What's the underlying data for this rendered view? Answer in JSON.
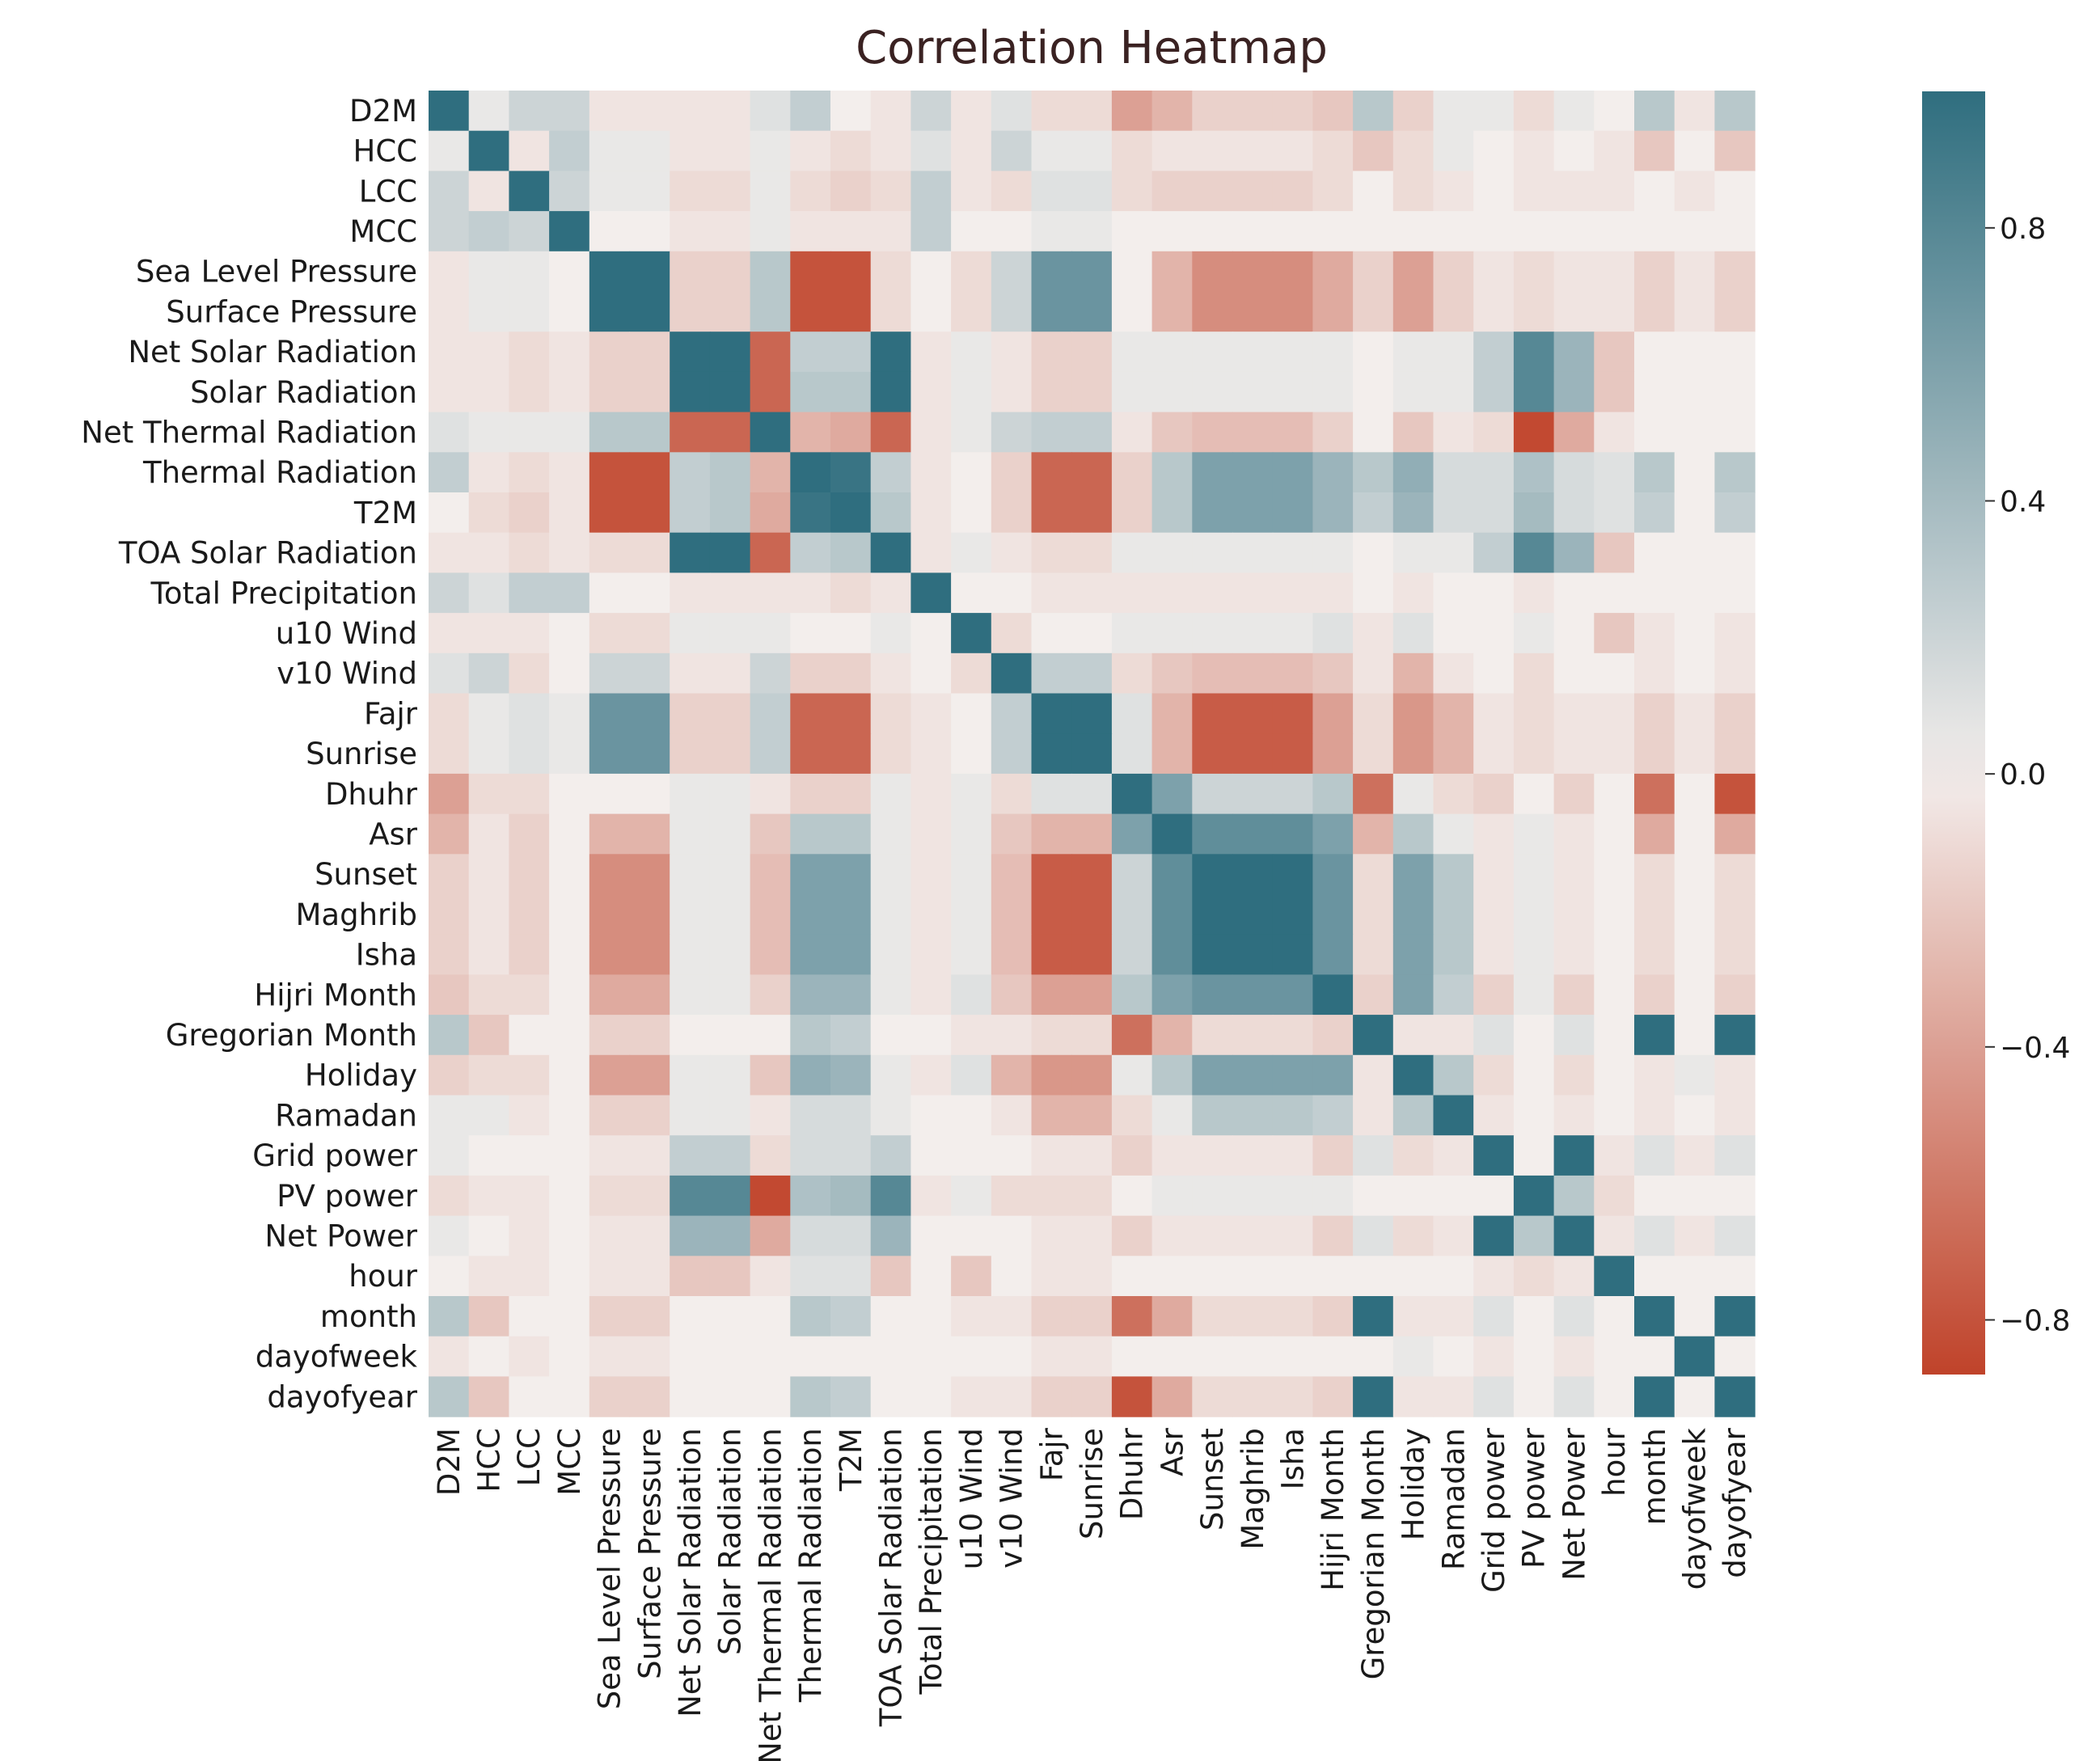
{
  "chart_data": {
    "type": "heatmap",
    "title": "Correlation Heatmap",
    "labels": [
      "D2M",
      "HCC",
      "LCC",
      "MCC",
      "Sea Level Pressure",
      "Surface Pressure",
      "Net Solar Radiation",
      "Solar Radiation",
      "Net Thermal Radiation",
      "Thermal Radiation",
      "T2M",
      "TOA Solar Radiation",
      "Total Precipitation",
      "u10 Wind",
      "v10 Wind",
      "Fajr",
      "Sunrise",
      "Dhuhr",
      "Asr",
      "Sunset",
      "Maghrib",
      "Isha",
      "Hijri Month",
      "Gregorian Month",
      "Holiday",
      "Ramadan",
      "Grid power",
      "PV power",
      "Net Power",
      "hour",
      "month",
      "dayofweek",
      "dayofyear"
    ],
    "colorbar": {
      "min": -0.88,
      "max": 1.0,
      "ticks": [
        0.8,
        0.4,
        0.0,
        -0.4,
        -0.8
      ],
      "tick_labels": [
        "0.8",
        "0.4",
        "0.0",
        "−0.4",
        "−0.8"
      ],
      "low_color": "#c0432a",
      "mid_color": "#f3eeec",
      "high_color": "#2f6e7f"
    },
    "matrix": [
      [
        1,
        0.05,
        0.2,
        0.2,
        -0.05,
        -0.05,
        -0.05,
        -0.05,
        0.1,
        0.25,
        0,
        -0.05,
        0.2,
        -0.05,
        0.1,
        -0.1,
        -0.1,
        -0.4,
        -0.3,
        -0.15,
        -0.15,
        -0.15,
        -0.2,
        0.3,
        -0.15,
        0.05,
        0.05,
        -0.1,
        0.05,
        0,
        0.3,
        -0.05,
        0.3
      ],
      [
        0.05,
        1,
        -0.05,
        0.25,
        0.05,
        0.05,
        -0.05,
        -0.05,
        0.05,
        -0.05,
        -0.1,
        -0.05,
        0.1,
        -0.05,
        0.2,
        0.05,
        0.05,
        -0.1,
        -0.05,
        -0.05,
        -0.05,
        -0.05,
        -0.1,
        -0.2,
        -0.1,
        0.05,
        0,
        -0.05,
        0,
        -0.05,
        -0.2,
        0,
        -0.2
      ],
      [
        0.2,
        -0.05,
        1,
        0.2,
        0.05,
        0.05,
        -0.1,
        -0.1,
        0.05,
        -0.1,
        -0.15,
        -0.1,
        0.25,
        -0.05,
        -0.1,
        0.1,
        0.1,
        -0.1,
        -0.15,
        -0.15,
        -0.15,
        -0.15,
        -0.1,
        0,
        -0.1,
        -0.05,
        0,
        -0.05,
        -0.05,
        -0.05,
        0,
        -0.05,
        0
      ],
      [
        0.2,
        0.25,
        0.2,
        1,
        0,
        0,
        -0.05,
        -0.05,
        0.05,
        -0.05,
        -0.05,
        -0.05,
        0.25,
        0,
        0,
        0.05,
        0.05,
        0,
        0,
        0,
        0,
        0,
        0,
        0,
        0,
        0,
        0,
        0,
        0,
        0,
        0,
        0,
        0
      ],
      [
        -0.05,
        0.05,
        0.05,
        0,
        1,
        1,
        -0.15,
        -0.15,
        0.3,
        -0.8,
        -0.8,
        -0.1,
        0,
        -0.1,
        0.2,
        0.7,
        0.7,
        0,
        -0.3,
        -0.5,
        -0.5,
        -0.5,
        -0.35,
        -0.15,
        -0.4,
        -0.15,
        -0.05,
        -0.1,
        -0.05,
        -0.05,
        -0.15,
        -0.05,
        -0.15
      ],
      [
        -0.05,
        0.05,
        0.05,
        0,
        1,
        1,
        -0.15,
        -0.15,
        0.3,
        -0.8,
        -0.8,
        -0.1,
        0,
        -0.1,
        0.2,
        0.7,
        0.7,
        0,
        -0.3,
        -0.5,
        -0.5,
        -0.5,
        -0.35,
        -0.15,
        -0.4,
        -0.15,
        -0.05,
        -0.1,
        -0.05,
        -0.05,
        -0.15,
        -0.05,
        -0.15
      ],
      [
        -0.05,
        -0.05,
        -0.1,
        -0.05,
        -0.15,
        -0.15,
        1,
        1,
        -0.7,
        0.25,
        0.25,
        1,
        -0.05,
        0.05,
        -0.05,
        -0.15,
        -0.15,
        0.05,
        0.05,
        0.05,
        0.05,
        0.05,
        0.05,
        0,
        0.05,
        0.05,
        0.25,
        0.8,
        0.45,
        -0.2,
        0,
        0,
        0
      ],
      [
        -0.05,
        -0.05,
        -0.1,
        -0.05,
        -0.15,
        -0.15,
        1,
        1,
        -0.7,
        0.3,
        0.3,
        1,
        -0.05,
        0.05,
        -0.05,
        -0.15,
        -0.15,
        0.05,
        0.05,
        0.05,
        0.05,
        0.05,
        0.05,
        0,
        0.05,
        0.05,
        0.25,
        0.8,
        0.45,
        -0.2,
        0,
        0,
        0
      ],
      [
        0.1,
        0.05,
        0.05,
        0.05,
        0.3,
        0.3,
        -0.7,
        -0.7,
        1,
        -0.3,
        -0.35,
        -0.7,
        -0.05,
        0.05,
        0.2,
        0.25,
        0.25,
        -0.05,
        -0.2,
        -0.25,
        -0.25,
        -0.25,
        -0.15,
        0,
        -0.2,
        -0.05,
        -0.1,
        -0.85,
        -0.35,
        -0.05,
        0,
        0,
        0
      ],
      [
        0.25,
        -0.05,
        -0.1,
        -0.05,
        -0.8,
        -0.8,
        0.25,
        0.3,
        -0.3,
        1,
        0.95,
        0.25,
        -0.05,
        0,
        -0.15,
        -0.7,
        -0.7,
        -0.15,
        0.3,
        0.6,
        0.6,
        0.6,
        0.45,
        0.3,
        0.5,
        0.15,
        0.15,
        0.35,
        0.15,
        0.1,
        0.3,
        0,
        0.3
      ],
      [
        0,
        -0.1,
        -0.15,
        -0.05,
        -0.8,
        -0.8,
        0.25,
        0.3,
        -0.35,
        0.95,
        1,
        0.3,
        -0.05,
        0,
        -0.15,
        -0.7,
        -0.7,
        -0.15,
        0.3,
        0.6,
        0.6,
        0.6,
        0.45,
        0.25,
        0.45,
        0.15,
        0.15,
        0.4,
        0.15,
        0.1,
        0.25,
        0,
        0.25
      ],
      [
        -0.05,
        -0.05,
        -0.1,
        -0.05,
        -0.1,
        -0.1,
        1,
        1,
        -0.7,
        0.25,
        0.3,
        1,
        -0.05,
        0.05,
        -0.05,
        -0.1,
        -0.1,
        0.05,
        0.05,
        0.05,
        0.05,
        0.05,
        0.05,
        0,
        0.05,
        0.05,
        0.25,
        0.8,
        0.45,
        -0.2,
        0,
        0,
        0
      ],
      [
        0.2,
        0.1,
        0.25,
        0.25,
        0,
        0,
        -0.05,
        -0.05,
        -0.05,
        -0.05,
        -0.1,
        -0.05,
        1,
        0,
        0,
        -0.05,
        -0.05,
        -0.05,
        -0.05,
        -0.05,
        -0.05,
        -0.05,
        -0.05,
        0,
        -0.05,
        0,
        0,
        -0.05,
        0,
        0,
        0,
        0,
        0
      ],
      [
        -0.05,
        -0.05,
        -0.05,
        0,
        -0.1,
        -0.1,
        0.05,
        0.05,
        0.05,
        0,
        0,
        0.05,
        0,
        1,
        -0.1,
        0,
        0,
        0.05,
        0.05,
        0.05,
        0.05,
        0.05,
        0.1,
        -0.05,
        0.1,
        0,
        0,
        0.05,
        0,
        -0.2,
        -0.05,
        0,
        -0.05
      ],
      [
        0.1,
        0.2,
        -0.1,
        0,
        0.2,
        0.2,
        -0.05,
        -0.05,
        0.2,
        -0.15,
        -0.15,
        -0.05,
        0,
        -0.1,
        1,
        0.25,
        0.25,
        -0.1,
        -0.2,
        -0.25,
        -0.25,
        -0.25,
        -0.2,
        -0.05,
        -0.3,
        -0.05,
        0,
        -0.1,
        0,
        0,
        -0.05,
        0,
        -0.05
      ],
      [
        -0.1,
        0.05,
        0.1,
        0.05,
        0.7,
        0.7,
        -0.15,
        -0.15,
        0.25,
        -0.7,
        -0.7,
        -0.1,
        -0.05,
        0,
        0.25,
        1,
        1,
        0.1,
        -0.3,
        -0.75,
        -0.75,
        -0.75,
        -0.4,
        -0.1,
        -0.45,
        -0.3,
        -0.05,
        -0.1,
        -0.05,
        -0.05,
        -0.15,
        -0.05,
        -0.15
      ],
      [
        -0.1,
        0.05,
        0.1,
        0.05,
        0.7,
        0.7,
        -0.15,
        -0.15,
        0.25,
        -0.7,
        -0.7,
        -0.1,
        -0.05,
        0,
        0.25,
        1,
        1,
        0.1,
        -0.3,
        -0.75,
        -0.75,
        -0.75,
        -0.4,
        -0.1,
        -0.45,
        -0.3,
        -0.05,
        -0.1,
        -0.05,
        -0.05,
        -0.15,
        -0.05,
        -0.15
      ],
      [
        -0.4,
        -0.1,
        -0.1,
        0,
        0,
        0,
        0.05,
        0.05,
        -0.05,
        -0.15,
        -0.15,
        0.05,
        -0.05,
        0.05,
        -0.1,
        0.1,
        0.1,
        1,
        0.6,
        0.2,
        0.2,
        0.2,
        0.3,
        -0.65,
        0.05,
        -0.1,
        -0.15,
        0,
        -0.15,
        0,
        -0.65,
        0,
        -0.8
      ],
      [
        -0.3,
        -0.05,
        -0.15,
        0,
        -0.3,
        -0.3,
        0.05,
        0.05,
        -0.2,
        0.3,
        0.3,
        0.05,
        -0.05,
        0.05,
        -0.2,
        -0.3,
        -0.3,
        0.6,
        1,
        0.75,
        0.75,
        0.75,
        0.6,
        -0.3,
        0.3,
        0.05,
        -0.05,
        0.05,
        -0.05,
        0,
        -0.35,
        0,
        -0.35
      ],
      [
        -0.15,
        -0.05,
        -0.15,
        0,
        -0.5,
        -0.5,
        0.05,
        0.05,
        -0.25,
        0.6,
        0.6,
        0.05,
        -0.05,
        0.05,
        -0.25,
        -0.75,
        -0.75,
        0.2,
        0.75,
        1,
        1,
        1,
        0.7,
        -0.1,
        0.6,
        0.3,
        -0.05,
        0.05,
        -0.05,
        0,
        -0.1,
        0,
        -0.1
      ],
      [
        -0.15,
        -0.05,
        -0.15,
        0,
        -0.5,
        -0.5,
        0.05,
        0.05,
        -0.25,
        0.6,
        0.6,
        0.05,
        -0.05,
        0.05,
        -0.25,
        -0.75,
        -0.75,
        0.2,
        0.75,
        1,
        1,
        1,
        0.7,
        -0.1,
        0.6,
        0.3,
        -0.05,
        0.05,
        -0.05,
        0,
        -0.1,
        0,
        -0.1
      ],
      [
        -0.15,
        -0.05,
        -0.15,
        0,
        -0.5,
        -0.5,
        0.05,
        0.05,
        -0.25,
        0.6,
        0.6,
        0.05,
        -0.05,
        0.05,
        -0.25,
        -0.75,
        -0.75,
        0.2,
        0.75,
        1,
        1,
        1,
        0.7,
        -0.1,
        0.6,
        0.3,
        -0.05,
        0.05,
        -0.05,
        0,
        -0.1,
        0,
        -0.1
      ],
      [
        -0.2,
        -0.1,
        -0.1,
        0,
        -0.35,
        -0.35,
        0.05,
        0.05,
        -0.15,
        0.45,
        0.45,
        0.05,
        -0.05,
        0.1,
        -0.2,
        -0.4,
        -0.4,
        0.3,
        0.6,
        0.7,
        0.7,
        0.7,
        1,
        -0.15,
        0.6,
        0.25,
        -0.15,
        0.05,
        -0.15,
        0,
        -0.15,
        0,
        -0.15
      ],
      [
        0.3,
        -0.2,
        0,
        0,
        -0.15,
        -0.15,
        0,
        0,
        0,
        0.3,
        0.25,
        0,
        0,
        -0.05,
        -0.05,
        -0.1,
        -0.1,
        -0.65,
        -0.3,
        -0.1,
        -0.1,
        -0.1,
        -0.15,
        1,
        -0.05,
        -0.05,
        0.1,
        0,
        0.1,
        0,
        1,
        0,
        1
      ],
      [
        -0.15,
        -0.1,
        -0.1,
        0,
        -0.4,
        -0.4,
        0.05,
        0.05,
        -0.2,
        0.5,
        0.45,
        0.05,
        -0.05,
        0.1,
        -0.3,
        -0.45,
        -0.45,
        0.05,
        0.3,
        0.6,
        0.6,
        0.6,
        0.6,
        -0.05,
        1,
        0.3,
        -0.1,
        0,
        -0.1,
        0,
        -0.05,
        0.05,
        -0.05
      ],
      [
        0.05,
        0.05,
        -0.05,
        0,
        -0.15,
        -0.15,
        0.05,
        0.05,
        -0.05,
        0.15,
        0.15,
        0.05,
        0,
        0,
        -0.05,
        -0.3,
        -0.3,
        -0.1,
        0.05,
        0.3,
        0.3,
        0.3,
        0.25,
        -0.05,
        0.3,
        1,
        -0.05,
        0,
        -0.05,
        0,
        -0.05,
        0,
        -0.05
      ],
      [
        0.05,
        0,
        0,
        0,
        -0.05,
        -0.05,
        0.25,
        0.25,
        -0.1,
        0.15,
        0.15,
        0.25,
        0,
        0,
        0,
        -0.05,
        -0.05,
        -0.15,
        -0.05,
        -0.05,
        -0.05,
        -0.05,
        -0.15,
        0.1,
        -0.1,
        -0.05,
        1,
        0,
        1,
        -0.05,
        0.1,
        -0.05,
        0.1
      ],
      [
        -0.1,
        -0.05,
        -0.05,
        0,
        -0.1,
        -0.1,
        0.8,
        0.8,
        -0.85,
        0.35,
        0.4,
        0.8,
        -0.05,
        0.05,
        -0.1,
        -0.1,
        -0.1,
        0,
        0.05,
        0.05,
        0.05,
        0.05,
        0.05,
        0,
        0,
        0,
        0,
        1,
        0.3,
        -0.1,
        0,
        0,
        0
      ],
      [
        0.05,
        0,
        -0.05,
        0,
        -0.05,
        -0.05,
        0.45,
        0.45,
        -0.35,
        0.15,
        0.15,
        0.45,
        0,
        0,
        0,
        -0.05,
        -0.05,
        -0.15,
        -0.05,
        -0.05,
        -0.05,
        -0.05,
        -0.15,
        0.1,
        -0.1,
        -0.05,
        1,
        0.3,
        1,
        -0.05,
        0.1,
        -0.05,
        0.1
      ],
      [
        0,
        -0.05,
        -0.05,
        0,
        -0.05,
        -0.05,
        -0.2,
        -0.2,
        -0.05,
        0.1,
        0.1,
        -0.2,
        0,
        -0.2,
        0,
        -0.05,
        -0.05,
        0,
        0,
        0,
        0,
        0,
        0,
        0,
        0,
        0,
        -0.05,
        -0.1,
        -0.05,
        1,
        0,
        0,
        0
      ],
      [
        0.3,
        -0.2,
        0,
        0,
        -0.15,
        -0.15,
        0,
        0,
        0,
        0.3,
        0.25,
        0,
        0,
        -0.05,
        -0.05,
        -0.15,
        -0.15,
        -0.65,
        -0.35,
        -0.1,
        -0.1,
        -0.1,
        -0.15,
        1,
        -0.05,
        -0.05,
        0.1,
        0,
        0.1,
        0,
        1,
        0,
        1
      ],
      [
        -0.05,
        0,
        -0.05,
        0,
        -0.05,
        -0.05,
        0,
        0,
        0,
        0,
        0,
        0,
        0,
        0,
        0,
        -0.05,
        -0.05,
        0,
        0,
        0,
        0,
        0,
        0,
        0,
        0.05,
        0,
        -0.05,
        0,
        -0.05,
        0,
        0,
        1,
        0
      ],
      [
        0.3,
        -0.2,
        0,
        0,
        -0.15,
        -0.15,
        0,
        0,
        0,
        0.3,
        0.25,
        0,
        0,
        -0.05,
        -0.05,
        -0.15,
        -0.15,
        -0.8,
        -0.35,
        -0.1,
        -0.1,
        -0.1,
        -0.15,
        1,
        -0.05,
        -0.05,
        0.1,
        0,
        0.1,
        0,
        1,
        0,
        1
      ]
    ]
  }
}
